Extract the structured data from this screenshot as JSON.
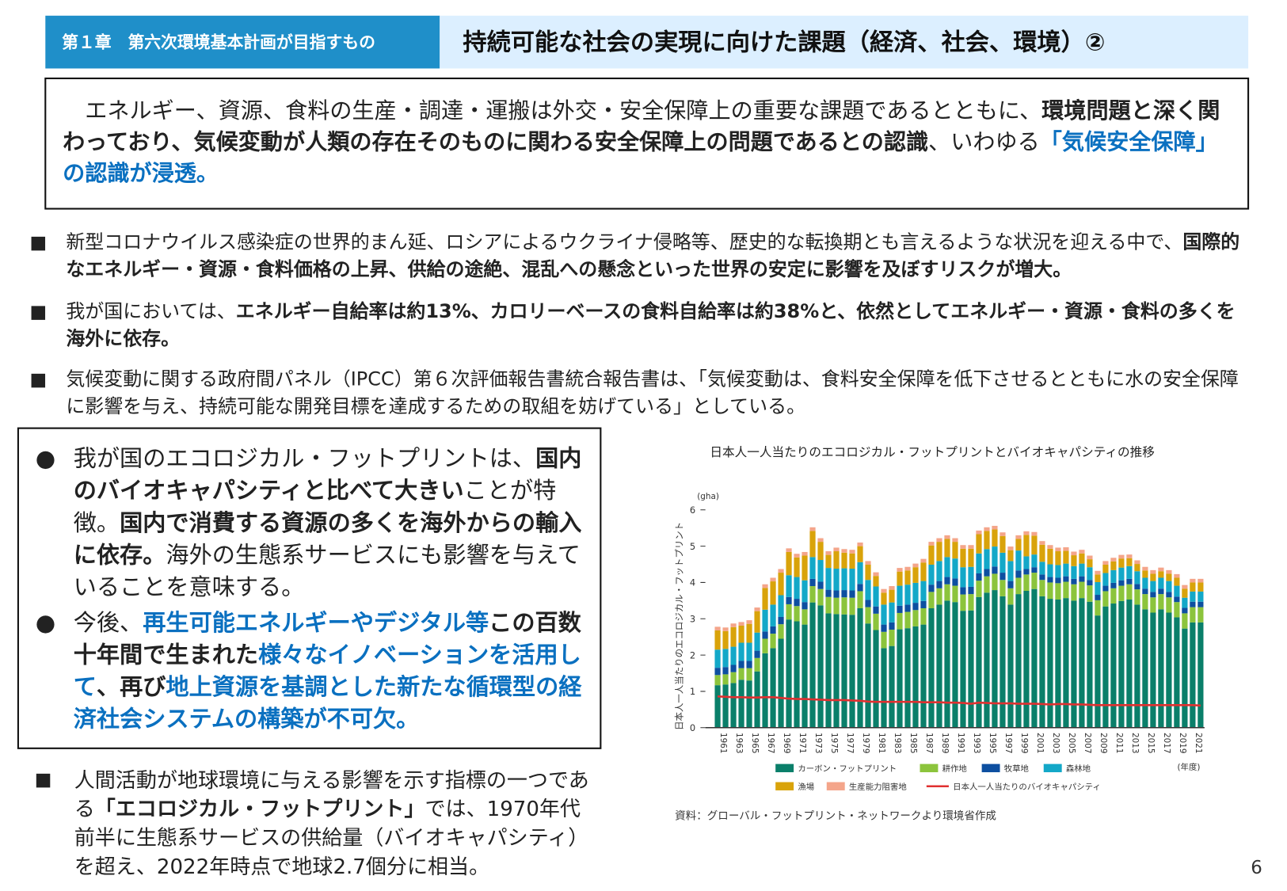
{
  "header": {
    "chapter": "第１章　第六次環境基本計画が目指すもの",
    "title": "持続可能な社会の実現に向けた課題（経済、社会、環境）②"
  },
  "summary": {
    "s1": "　エネルギー、資源、食料の生産・調達・運搬は外交・安全保障上の重要な課題であるとともに、",
    "s2": "環境問題と深く関わっており、気候変動が人類の存在そのものに関わる安全保障上の問題であるとの認識",
    "s3": "、いわゆる",
    "s4": "「気候安全保障」の認識が浸透。"
  },
  "bullets": [
    {
      "marker": "■",
      "s1": "新型コロナウイルス感染症の世界的まん延、ロシアによるウクライナ侵略等、歴史的な転換期とも言えるような状況を迎える中で、",
      "s2": "国際的なエネルギー・資源・食料価格の上昇、供給の途絶、混乱への懸念といった世界の安定に影響を及ぼすリスクが増大。"
    },
    {
      "marker": "■",
      "s1": "我が国においては、",
      "s2": "エネルギー自給率は約13%、カロリーベースの食料自給率は約38%と、依然としてエネルギー・資源・食料の多くを海外に依存。"
    },
    {
      "marker": "■",
      "s1": "気候変動に関する政府間パネル（IPCC）第６次評価報告書統合報告書は、「気候変動は、食料安全保障を低下させるとともに水の安全保障に影響を与え、持続可能な開発目標を達成するための取組を妨げている」としている。"
    }
  ],
  "box": {
    "item1": {
      "marker": "●",
      "s1": "我が国のエコロジカル・フットプリントは、",
      "s2": "国内のバイオキャパシティと比べて大きい",
      "s3": "ことが特徴。",
      "s4": "国内で消費する資源の多くを海外からの輸入に依存。",
      "s5": "海外の生態系サービスにも影響を与えていることを意味する。"
    },
    "item2": {
      "marker": "●",
      "s1": "今後、",
      "s2": "再生可能エネルギーやデジタル等",
      "s3": "この百数十年間で生まれた",
      "s4": "様々なイノベーションを活用して",
      "s5": "、再び",
      "s6": "地上資源を基調とした新たな循環型の経済社会システムの構築が不可欠。"
    }
  },
  "bottom": {
    "marker": "■",
    "s1": "人間活動が地球環境に与える影響を示す指標の一つである",
    "s2": "「エコロジカル・フットプリント」",
    "s3": "では、1970年代前半に生態系サービスの供給量（バイオキャパシティ）を超え、2022年時点で地球2.7個分に相当。"
  },
  "chart_data": {
    "type": "bar",
    "stacked": true,
    "title": "日本人一人当たりのエコロジカル・フットプリントとバイオキャパシティの推移",
    "ylabel": "日本人一人当たりのエコロジカル・フットプリント",
    "yunit": "(gha)",
    "xunit": "(年度)",
    "ylim": [
      0,
      6
    ],
    "yticks": [
      0,
      1,
      2,
      3,
      4,
      5,
      6
    ],
    "x": [
      1961,
      1962,
      1963,
      1964,
      1965,
      1966,
      1967,
      1968,
      1969,
      1970,
      1971,
      1972,
      1973,
      1974,
      1975,
      1976,
      1977,
      1978,
      1979,
      1980,
      1981,
      1982,
      1983,
      1984,
      1985,
      1986,
      1987,
      1988,
      1989,
      1990,
      1991,
      1992,
      1993,
      1994,
      1995,
      1996,
      1997,
      1998,
      1999,
      2000,
      2001,
      2002,
      2003,
      2004,
      2005,
      2006,
      2007,
      2008,
      2009,
      2010,
      2011,
      2012,
      2013,
      2014,
      2015,
      2016,
      2017,
      2018,
      2019,
      2020,
      2021,
      2022
    ],
    "xtick_labels": [
      "1961",
      "1963",
      "1965",
      "1967",
      "1969",
      "1971",
      "1973",
      "1975",
      "1977",
      "1979",
      "1981",
      "1983",
      "1985",
      "1987",
      "1989",
      "1991",
      "1993",
      "1995",
      "1997",
      "1999",
      "2001",
      "2003",
      "2005",
      "2007",
      "2009",
      "2011",
      "2013",
      "2015",
      "2017",
      "2019",
      "2021"
    ],
    "series": [
      {
        "name": "カーボン・フットプリント",
        "color": "#0a7f6a",
        "values": [
          1.17,
          1.19,
          1.23,
          1.32,
          1.3,
          1.55,
          2.05,
          2.19,
          2.45,
          2.98,
          2.93,
          2.84,
          3.45,
          3.37,
          3.15,
          3.13,
          3.12,
          3.11,
          3.29,
          2.87,
          2.69,
          2.19,
          2.25,
          2.71,
          2.74,
          2.79,
          2.84,
          3.29,
          3.39,
          3.5,
          3.46,
          3.22,
          3.23,
          3.6,
          3.72,
          3.79,
          3.62,
          3.39,
          3.68,
          3.77,
          3.82,
          3.62,
          3.55,
          3.53,
          3.57,
          3.5,
          3.57,
          3.47,
          3.09,
          3.34,
          3.42,
          3.49,
          3.53,
          3.39,
          3.26,
          3.17,
          3.26,
          3.17,
          3.04,
          2.73,
          2.9,
          2.9
        ]
      },
      {
        "name": "耕作地",
        "color": "#8cc43c",
        "values": [
          0.28,
          0.28,
          0.3,
          0.32,
          0.34,
          0.37,
          0.4,
          0.4,
          0.4,
          0.42,
          0.42,
          0.42,
          0.45,
          0.45,
          0.45,
          0.45,
          0.47,
          0.47,
          0.47,
          0.45,
          0.45,
          0.45,
          0.45,
          0.45,
          0.45,
          0.45,
          0.45,
          0.45,
          0.45,
          0.45,
          0.45,
          0.45,
          0.45,
          0.45,
          0.45,
          0.45,
          0.45,
          0.45,
          0.45,
          0.45,
          0.45,
          0.45,
          0.45,
          0.45,
          0.45,
          0.45,
          0.45,
          0.45,
          0.42,
          0.42,
          0.42,
          0.42,
          0.42,
          0.42,
          0.42,
          0.42,
          0.42,
          0.42,
          0.42,
          0.42,
          0.42,
          0.42
        ]
      },
      {
        "name": "牧草地",
        "color": "#0d4fa0",
        "values": [
          0.2,
          0.2,
          0.2,
          0.2,
          0.2,
          0.2,
          0.2,
          0.2,
          0.2,
          0.2,
          0.2,
          0.2,
          0.2,
          0.2,
          0.2,
          0.2,
          0.2,
          0.2,
          0.2,
          0.2,
          0.2,
          0.2,
          0.2,
          0.2,
          0.2,
          0.2,
          0.2,
          0.2,
          0.2,
          0.2,
          0.2,
          0.2,
          0.2,
          0.2,
          0.2,
          0.2,
          0.2,
          0.2,
          0.2,
          0.15,
          0.15,
          0.15,
          0.15,
          0.15,
          0.15,
          0.15,
          0.15,
          0.15,
          0.15,
          0.15,
          0.15,
          0.15,
          0.15,
          0.15,
          0.15,
          0.15,
          0.15,
          0.15,
          0.15,
          0.15,
          0.15,
          0.15
        ]
      },
      {
        "name": "森林地",
        "color": "#13a8c8",
        "values": [
          0.5,
          0.5,
          0.5,
          0.5,
          0.5,
          0.5,
          0.6,
          0.6,
          0.6,
          0.6,
          0.6,
          0.6,
          0.6,
          0.6,
          0.6,
          0.6,
          0.6,
          0.6,
          0.6,
          0.55,
          0.55,
          0.55,
          0.55,
          0.55,
          0.55,
          0.55,
          0.55,
          0.55,
          0.55,
          0.55,
          0.55,
          0.55,
          0.55,
          0.55,
          0.55,
          0.55,
          0.55,
          0.55,
          0.55,
          0.35,
          0.35,
          0.35,
          0.35,
          0.35,
          0.35,
          0.35,
          0.35,
          0.35,
          0.35,
          0.35,
          0.35,
          0.35,
          0.35,
          0.35,
          0.3,
          0.3,
          0.3,
          0.3,
          0.3,
          0.28,
          0.28,
          0.28
        ]
      },
      {
        "name": "漁場",
        "color": "#d9a30a",
        "values": [
          0.53,
          0.49,
          0.54,
          0.47,
          0.52,
          0.59,
          0.6,
          0.64,
          0.62,
          0.64,
          0.54,
          0.68,
          0.72,
          0.5,
          0.36,
          0.48,
          0.43,
          0.42,
          0.44,
          0.42,
          0.29,
          0.33,
          0.35,
          0.39,
          0.39,
          0.43,
          0.51,
          0.53,
          0.53,
          0.5,
          0.46,
          0.51,
          0.5,
          0.53,
          0.5,
          0.47,
          0.46,
          0.3,
          0.32,
          0.59,
          0.52,
          0.47,
          0.43,
          0.38,
          0.35,
          0.3,
          0.28,
          0.22,
          0.21,
          0.23,
          0.24,
          0.25,
          0.22,
          0.2,
          0.2,
          0.2,
          0.18,
          0.2,
          0.22,
          0.25,
          0.25,
          0.25
        ]
      },
      {
        "name": "生産能力阻害地",
        "color": "#f4a58a",
        "values": [
          0.1,
          0.1,
          0.1,
          0.1,
          0.1,
          0.1,
          0.1,
          0.1,
          0.1,
          0.1,
          0.1,
          0.1,
          0.1,
          0.1,
          0.1,
          0.1,
          0.1,
          0.1,
          0.1,
          0.1,
          0.1,
          0.1,
          0.1,
          0.1,
          0.1,
          0.1,
          0.1,
          0.1,
          0.1,
          0.1,
          0.1,
          0.1,
          0.1,
          0.1,
          0.1,
          0.1,
          0.1,
          0.1,
          0.1,
          0.1,
          0.1,
          0.1,
          0.1,
          0.1,
          0.1,
          0.1,
          0.1,
          0.1,
          0.1,
          0.1,
          0.1,
          0.1,
          0.1,
          0.1,
          0.1,
          0.1,
          0.1,
          0.1,
          0.1,
          0.1,
          0.1,
          0.1
        ]
      }
    ],
    "line": {
      "name": "日本人一人当たりのバイオキャパシティ",
      "color": "#e03030",
      "values": [
        0.86,
        0.85,
        0.84,
        0.84,
        0.83,
        0.83,
        0.84,
        0.84,
        0.82,
        0.8,
        0.79,
        0.79,
        0.78,
        0.77,
        0.76,
        0.76,
        0.76,
        0.75,
        0.74,
        0.72,
        0.71,
        0.71,
        0.71,
        0.71,
        0.71,
        0.71,
        0.7,
        0.7,
        0.7,
        0.69,
        0.69,
        0.68,
        0.66,
        0.69,
        0.68,
        0.67,
        0.67,
        0.67,
        0.66,
        0.66,
        0.66,
        0.65,
        0.64,
        0.65,
        0.65,
        0.64,
        0.64,
        0.63,
        0.62,
        0.62,
        0.62,
        0.62,
        0.62,
        0.62,
        0.62,
        0.62,
        0.62,
        0.62,
        0.62,
        0.62,
        0.62,
        0.61
      ]
    },
    "legend_position": "bottom",
    "grid": false
  },
  "source": "資料：グローバル・フットプリント・ネットワークより環境省作成",
  "page_number": "6"
}
